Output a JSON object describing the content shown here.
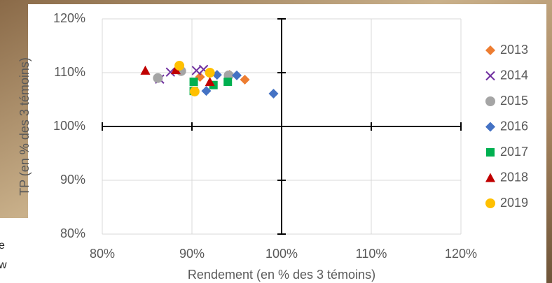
{
  "chart_data": {
    "type": "scatter",
    "x_label": "Rendement (en % des 3 témoins)",
    "y_label": "TP (en % des 3 témoins)",
    "xlim": [
      80,
      120
    ],
    "ylim": [
      80,
      120
    ],
    "xticks": [
      {
        "value": 80,
        "label": "80%"
      },
      {
        "value": 90,
        "label": "90%"
      },
      {
        "value": 100,
        "label": "100%"
      },
      {
        "value": 110,
        "label": "110%"
      },
      {
        "value": 120,
        "label": "120%"
      }
    ],
    "yticks": [
      {
        "value": 80,
        "label": "80%"
      },
      {
        "value": 90,
        "label": "90%"
      },
      {
        "value": 100,
        "label": "100%"
      },
      {
        "value": 110,
        "label": "110%"
      },
      {
        "value": 120,
        "label": "120%"
      }
    ],
    "grid": true,
    "crosses_at": {
      "x": 100,
      "y": 100
    },
    "legend": "right",
    "series": [
      {
        "name": "2013",
        "color": "#ed7d31",
        "marker": "diamond",
        "x": [
          90.9,
          94.2,
          95.9
        ],
        "values": [
          109.2,
          109.6,
          108.7
        ]
      },
      {
        "name": "2014",
        "color": "#7030a0",
        "marker": "cross",
        "x": [
          86.4,
          87.6,
          90.5,
          91.3
        ],
        "values": [
          108.8,
          110.1,
          110.4,
          110.6
        ]
      },
      {
        "name": "2015",
        "color": "#a5a5a5",
        "marker": "circle",
        "x": [
          86.2,
          88.8,
          94.1
        ],
        "values": [
          109.0,
          110.3,
          109.5
        ]
      },
      {
        "name": "2016",
        "color": "#4472c4",
        "marker": "diamond",
        "x": [
          91.6,
          92.8,
          95.0,
          99.1
        ],
        "values": [
          106.6,
          109.6,
          109.5,
          106.1
        ]
      },
      {
        "name": "2017",
        "color": "#00b050",
        "marker": "square",
        "x": [
          90.2,
          90.2,
          92.4,
          94.0
        ],
        "values": [
          108.3,
          106.6,
          107.7,
          108.3
        ]
      },
      {
        "name": "2018",
        "color": "#c00000",
        "marker": "triangle",
        "x": [
          84.8,
          88.2,
          92.0
        ],
        "values": [
          110.4,
          110.5,
          108.3
        ]
      },
      {
        "name": "2019",
        "color": "#ffc000",
        "marker": "circle",
        "x": [
          88.6,
          90.3,
          92.0
        ],
        "values": [
          111.3,
          106.5,
          110.0
        ]
      }
    ]
  },
  "background_text": [
    "e",
    "w"
  ]
}
